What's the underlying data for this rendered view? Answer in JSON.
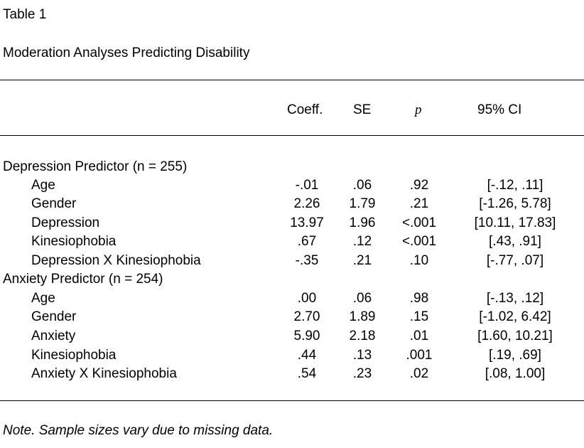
{
  "table_label": "Table 1",
  "table_title": "Moderation Analyses Predicting Disability",
  "headers": {
    "coeff": "Coeff.",
    "se": "SE",
    "p": "p",
    "ci": "95% CI"
  },
  "groups": [
    {
      "label": "Depression Predictor (n = 255)",
      "rows": [
        {
          "label": "Age",
          "coeff": "-.01",
          "se": ".06",
          "p": ".92",
          "ci": "[-.12, .11]"
        },
        {
          "label": "Gender",
          "coeff": "2.26",
          "se": "1.79",
          "p": ".21",
          "ci": "[-1.26, 5.78]"
        },
        {
          "label": "Depression",
          "coeff": "13.97",
          "se": "1.96",
          "p": "<.001",
          "ci": "[10.11, 17.83]"
        },
        {
          "label": "Kinesiophobia",
          "coeff": ".67",
          "se": ".12",
          "p": "<.001",
          "ci": "[.43, .91]"
        },
        {
          "label": "Depression X Kinesiophobia",
          "coeff": "-.35",
          "se": ".21",
          "p": ".10",
          "ci": "[-.77, .07]"
        }
      ]
    },
    {
      "label": "Anxiety Predictor (n = 254)",
      "rows": [
        {
          "label": "Age",
          "coeff": ".00",
          "se": ".06",
          "p": ".98",
          "ci": "[-.13, .12]"
        },
        {
          "label": "Gender",
          "coeff": "2.70",
          "se": "1.89",
          "p": ".15",
          "ci": "[-1.02, 6.42]"
        },
        {
          "label": "Anxiety",
          "coeff": "5.90",
          "se": "2.18",
          "p": ".01",
          "ci": "[1.60, 10.21]"
        },
        {
          "label": "Kinesiophobia",
          "coeff": ".44",
          "se": ".13",
          "p": ".001",
          "ci": "[.19, .69]"
        },
        {
          "label": "Anxiety X Kinesiophobia",
          "coeff": ".54",
          "se": ".23",
          "p": ".02",
          "ci": "[.08, 1.00]"
        }
      ]
    }
  ],
  "note": "Note. Sample sizes vary due to missing data."
}
